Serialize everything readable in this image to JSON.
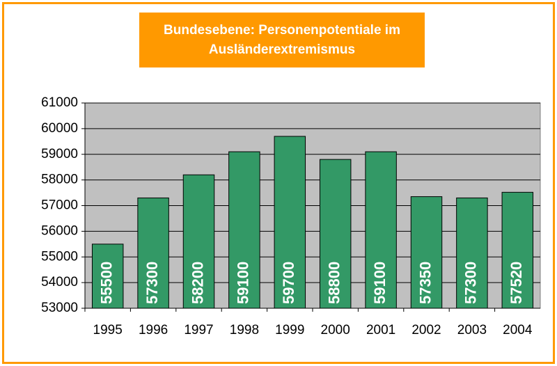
{
  "chart_data": {
    "type": "bar",
    "title": "Bundesebene: Personenpotentiale im Ausländerextremismus",
    "categories": [
      "1995",
      "1996",
      "1997",
      "1998",
      "1999",
      "2000",
      "2001",
      "2002",
      "2003",
      "2004"
    ],
    "values": [
      55500,
      57300,
      58200,
      59100,
      59700,
      58800,
      59100,
      57350,
      57300,
      57520
    ],
    "color": "#339966",
    "ylim": [
      53000,
      61000
    ],
    "yticks": [
      53000,
      54000,
      55000,
      56000,
      57000,
      58000,
      59000,
      60000,
      61000
    ],
    "grid": true
  }
}
